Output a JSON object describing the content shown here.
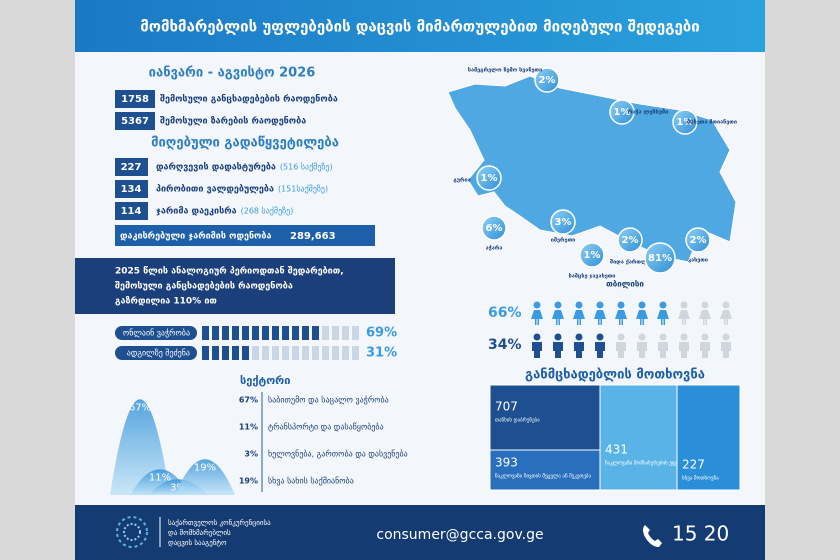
{
  "header": {
    "title": "მომხმარებლის უფლებების დაცვის მიმართულებით მიღებული შედეგები"
  },
  "period": "იანვარი - აგვისტო 2026",
  "totals": [
    {
      "number": "1758",
      "label": "შემოსული განცხადებების რაოდენობა"
    },
    {
      "number": "5367",
      "label": "შემოსული ზარების რაოდენობა"
    }
  ],
  "decisions": {
    "heading": "მიღებული გადაწყვეტილება",
    "items": [
      {
        "number": "227",
        "label": "დარღვევის დადასტურება",
        "cases": "(516 საქმეზე)"
      },
      {
        "number": "134",
        "label": "პირობითი ვალდებულება",
        "cases": "(151საქმეზე)"
      },
      {
        "number": "114",
        "label": "ჯარიმა დაეკისრა",
        "cases": "(268 საქმეზე)"
      }
    ]
  },
  "fine": {
    "label": "დაკისრებული ჯარიმის ოდენობა",
    "amount": "289,663"
  },
  "comparison": [
    "2025 წლის ანალოგიურ პერიოდთან შედარებით,",
    "შემოსული განცხადებების რაოდენობა",
    "გაზრდილია 110% ით"
  ],
  "purchase_channels": [
    {
      "name": "ონლაინ ვაჭრობა",
      "share": {
        "value": 69,
        "label": "69%"
      }
    },
    {
      "name": "ადგილზე შეძენა",
      "share": {
        "value": 31,
        "label": "31%"
      }
    }
  ],
  "sectors": {
    "heading": "სექტორი",
    "items": [
      {
        "share": {
          "value": 67,
          "label": "67%"
        },
        "name": "საბითუმო და საცალო ვაჭრობა"
      },
      {
        "share": {
          "value": 11,
          "label": "11%"
        },
        "name": "ტრანსპორტი და დასაწყობება"
      },
      {
        "share": {
          "value": 3,
          "label": "3%"
        },
        "name": "ხელოვნება, გართობა და დასვენება"
      },
      {
        "share": {
          "value": 19,
          "label": "19%"
        },
        "name": "სხვა სახის საქმიანობა"
      }
    ]
  },
  "regions": [
    {
      "share": "2%",
      "name": "სამეგრელო ზემო სვანეთი"
    },
    {
      "share": "1%",
      "name": "რაჭა ლეჩხუმი"
    },
    {
      "share": "1%",
      "name": "მცხეთა მთიანეთი"
    },
    {
      "share": "1%",
      "name": "გურია"
    },
    {
      "share": "6%",
      "name": "აჭარა"
    },
    {
      "share": "3%",
      "name": "იმერეთი"
    },
    {
      "share": "1%",
      "name": "სამცხე ჯავახეთი"
    },
    {
      "share": "2%",
      "name": "შიდა ქართლი"
    },
    {
      "share": "81%",
      "name": "თბილისი"
    },
    {
      "share": "2%",
      "name": "კახეთი"
    }
  ],
  "gender": [
    {
      "value": 66,
      "label": "66%"
    },
    {
      "value": 34,
      "label": "34%"
    }
  ],
  "requests": {
    "heading": "განმცხადებლის მოთხოვნა",
    "items": [
      {
        "number": "707",
        "label": "თანხის დაბრუნება"
      },
      {
        "number": "393",
        "label": "ნაკლოვანი ნივთის შეცვლა ან შეკეთება"
      },
      {
        "number": "431",
        "label": "ნაკლოვანი მომსახურების უფასოდ აღმოფხვრა"
      },
      {
        "number": "227",
        "label": "სხვა მოთხოვნა"
      }
    ]
  },
  "footer": {
    "agency": [
      "საქართველოს კონკურენციისა",
      "და მომხმარებლის",
      "დაცვის სააგენტო"
    ],
    "email": "consumer@gcca.gov.ge",
    "phone": "15 20"
  }
}
